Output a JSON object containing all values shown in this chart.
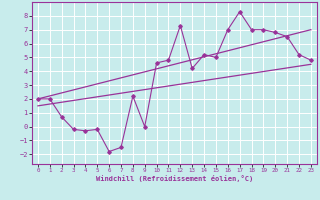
{
  "xlabel": "Windchill (Refroidissement éolien,°C)",
  "bg_color": "#c8ecec",
  "grid_color": "#ffffff",
  "line_color": "#993399",
  "xlim": [
    -0.5,
    23.5
  ],
  "ylim": [
    -2.7,
    9.0
  ],
  "xticks": [
    0,
    1,
    2,
    3,
    4,
    5,
    6,
    7,
    8,
    9,
    10,
    11,
    12,
    13,
    14,
    15,
    16,
    17,
    18,
    19,
    20,
    21,
    22,
    23
  ],
  "yticks": [
    -2,
    -1,
    0,
    1,
    2,
    3,
    4,
    5,
    6,
    7,
    8
  ],
  "hours": [
    0,
    1,
    2,
    3,
    4,
    5,
    6,
    7,
    8,
    9,
    10,
    11,
    12,
    13,
    14,
    15,
    16,
    17,
    18,
    19,
    20,
    21,
    22,
    23
  ],
  "windchill": [
    2.0,
    2.0,
    0.7,
    -0.2,
    -0.3,
    -0.2,
    -1.8,
    -1.5,
    2.2,
    0.0,
    4.6,
    4.8,
    7.3,
    4.2,
    5.2,
    5.0,
    7.0,
    8.3,
    7.0,
    7.0,
    6.8,
    6.5,
    5.2,
    4.8
  ],
  "trend1_x": [
    0,
    23
  ],
  "trend1_y": [
    2.0,
    7.0
  ],
  "trend2_x": [
    0,
    23
  ],
  "trend2_y": [
    1.5,
    4.5
  ]
}
